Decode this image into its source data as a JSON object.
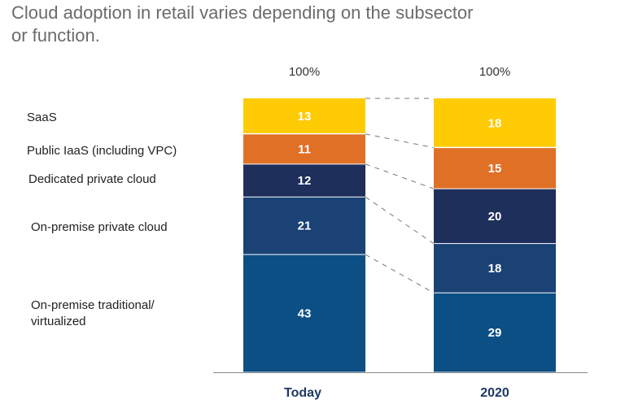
{
  "title_lines": [
    "Cloud adoption in retail varies depending on the subsector",
    "or function."
  ],
  "legend": {
    "saas": "SaaS",
    "public_iaas": "Public IaaS (including VPC)",
    "dedicated_private": "Dedicated private cloud",
    "onprem_private": "On-premise private cloud",
    "onprem_traditional_1": "On-premise traditional/",
    "onprem_traditional_2": "virtualized"
  },
  "chart_data": {
    "type": "bar",
    "stacked": true,
    "categories": [
      "Today",
      "2020"
    ],
    "totals": [
      "100%",
      "100%"
    ],
    "ylim": [
      0,
      100
    ],
    "series": [
      {
        "name": "On-premise traditional/ virtualized",
        "values": [
          43,
          29
        ],
        "color": "#0b4f85"
      },
      {
        "name": "On-premise private cloud",
        "values": [
          21,
          18
        ],
        "color": "#1a4275"
      },
      {
        "name": "Dedicated private cloud",
        "values": [
          12,
          20
        ],
        "color": "#1f2f5c"
      },
      {
        "name": "Public IaaS (including VPC)",
        "values": [
          11,
          15
        ],
        "color": "#e07026"
      },
      {
        "name": "SaaS",
        "values": [
          13,
          18
        ],
        "color": "#ffcb05"
      }
    ]
  }
}
